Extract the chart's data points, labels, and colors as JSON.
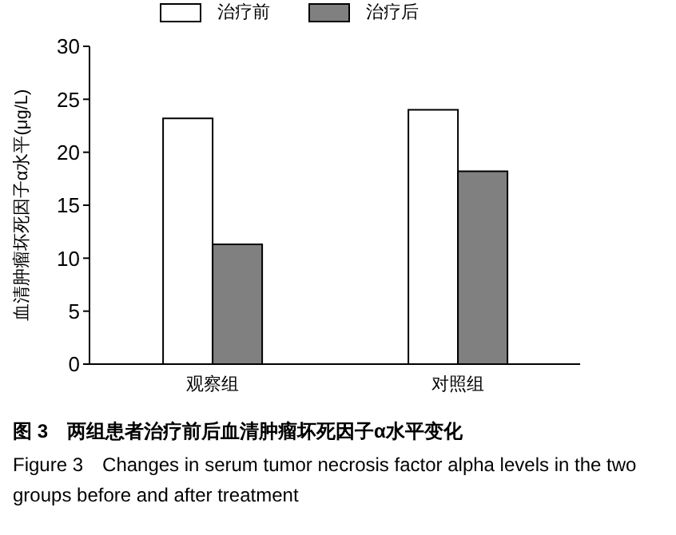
{
  "chart_data": {
    "type": "bar",
    "title": "图 3　两组患者治疗前后血清肿瘤坏死因子α水平变化",
    "annotations": [
      "Figure 3　Changes in serum tumor necrosis factor alpha levels in the two groups before and after treatment"
    ],
    "ylabel": "血清肿瘤坏死因子α水平(μg/L)",
    "categories": [
      "观察组",
      "对照组"
    ],
    "series": [
      {
        "name": "治疗前",
        "color": "#ffffff",
        "values": [
          23.2,
          24.0
        ]
      },
      {
        "name": "治疗后",
        "color": "#808080",
        "values": [
          11.3,
          18.2
        ]
      }
    ],
    "ylim": [
      0,
      30
    ],
    "yticks": [
      0,
      5,
      10,
      15,
      20,
      25,
      30
    ],
    "grid": false,
    "legend": "top"
  }
}
